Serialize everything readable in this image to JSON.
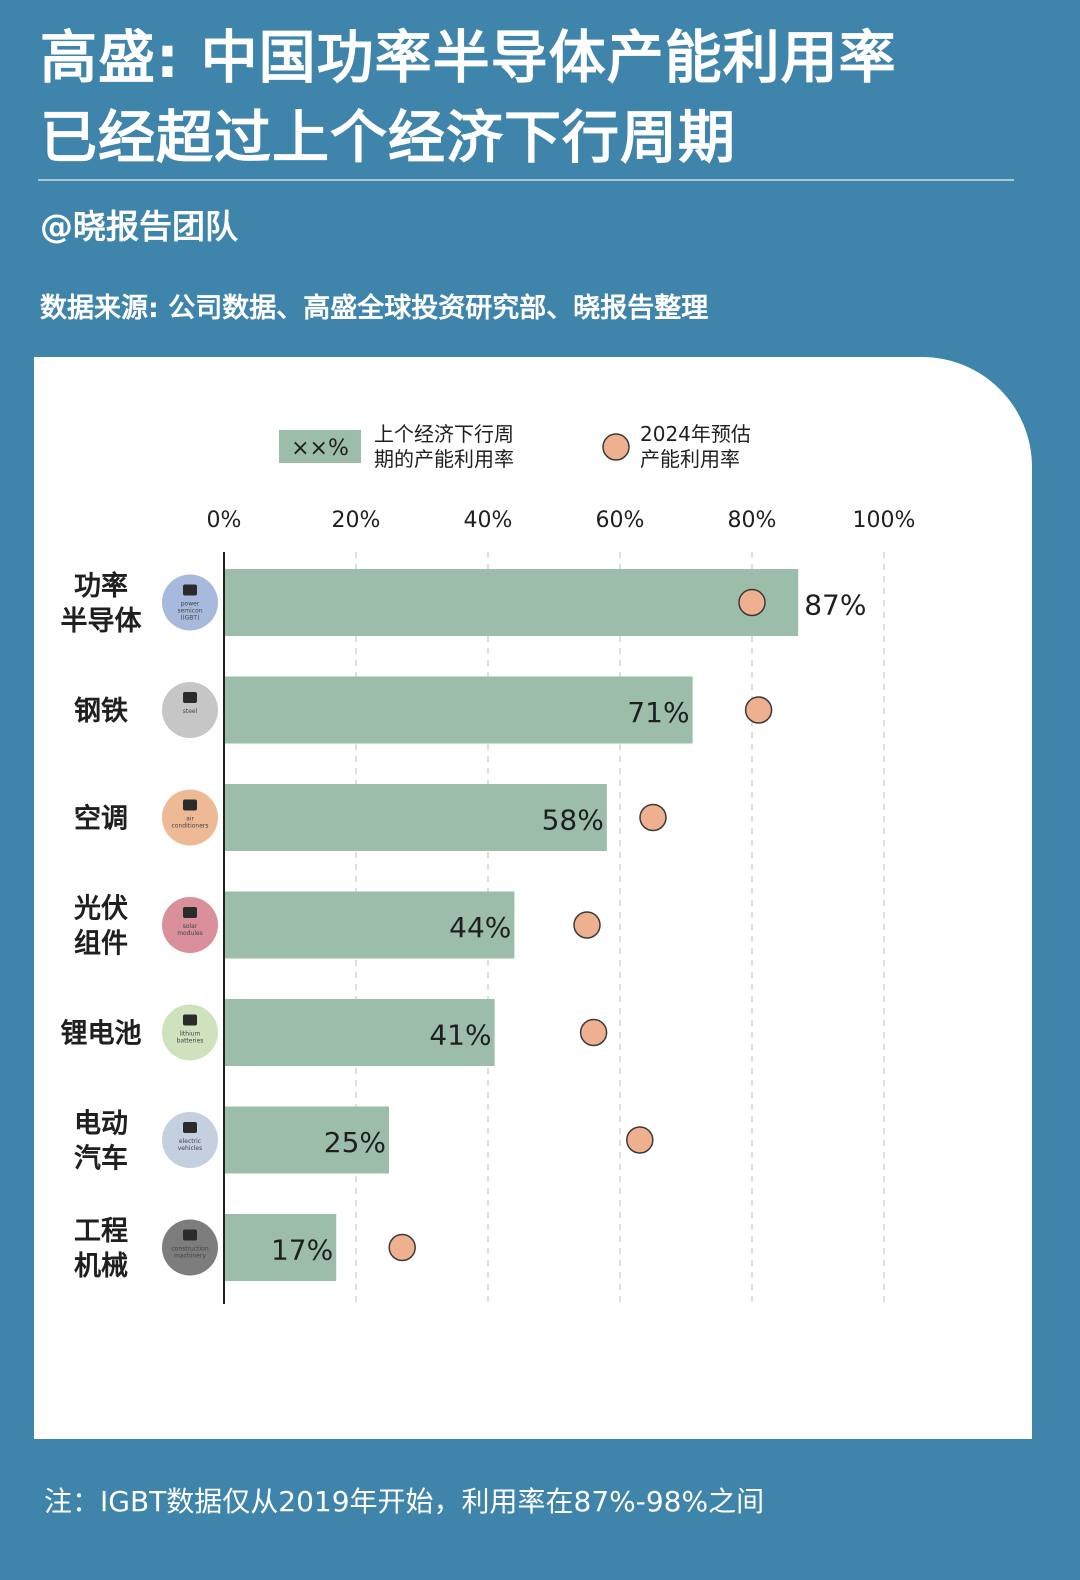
{
  "header": {
    "title_line1": "高盛: 中国功率半导体产能利用率",
    "title_line2": "已经超过上个经济下行周期",
    "author": "@晓报告团队",
    "source": "数据来源: 公司数据、高盛全球投资研究部、晓报告整理"
  },
  "footer": {
    "note": "注：IGBT数据仅从2019年开始，利用率在87%-98%之间"
  },
  "colors": {
    "background": "#3f84aa",
    "bar": "#9bbdaa",
    "dot": "#efb08f",
    "dot_outline": "#3a3a3a"
  },
  "chart_data": {
    "type": "bar",
    "orientation": "horizontal",
    "xlim": [
      0,
      100
    ],
    "x_ticks": [
      "0%",
      "20%",
      "40%",
      "60%",
      "80%",
      "100%"
    ],
    "grid": "vertical dashed",
    "legend": {
      "placement": "top",
      "bar_sample": "××%",
      "bar_line1": "上个经济下行周",
      "bar_line2": "期的产能利用率",
      "dot_line1": "2024年预估",
      "dot_line2": "产能利用率"
    },
    "categories": [
      {
        "label_lines": [
          "功率",
          "半导体"
        ],
        "icon": "power-semiconductor-icon",
        "icon_caption": [
          "power",
          "semicon",
          "(IGBT)"
        ],
        "icon_color": "#a7b9dc"
      },
      {
        "label_lines": [
          "钢铁"
        ],
        "icon": "steel-icon",
        "icon_caption": [
          "steel"
        ],
        "icon_color": "#c6c6c6"
      },
      {
        "label_lines": [
          "空调"
        ],
        "icon": "air-conditioner-icon",
        "icon_caption": [
          "air",
          "conditioners"
        ],
        "icon_color": "#eeb995"
      },
      {
        "label_lines": [
          "光伏",
          "组件"
        ],
        "icon": "solar-panel-icon",
        "icon_caption": [
          "solar",
          "modules"
        ],
        "icon_color": "#d9909a"
      },
      {
        "label_lines": [
          "锂电池"
        ],
        "icon": "battery-icon",
        "icon_caption": [
          "lithium",
          "batteries"
        ],
        "icon_color": "#cde2bd"
      },
      {
        "label_lines": [
          "电动",
          "汽车"
        ],
        "icon": "electric-car-icon",
        "icon_caption": [
          "electric",
          "vehicles"
        ],
        "icon_color": "#c4cfe0"
      },
      {
        "label_lines": [
          "工程",
          "机械"
        ],
        "icon": "excavator-icon",
        "icon_caption": [
          "construction",
          "machinery"
        ],
        "icon_color": "#7d7d7d"
      }
    ],
    "series": [
      {
        "name": "上个经济下行周期的产能利用率",
        "values": [
          87,
          71,
          58,
          44,
          41,
          25,
          17
        ]
      },
      {
        "name": "2024年预估产能利用率",
        "values": [
          80,
          81,
          65,
          55,
          56,
          63,
          27
        ]
      }
    ],
    "data_labels": [
      "87%",
      "71%",
      "58%",
      "44%",
      "41%",
      "25%",
      "17%"
    ]
  }
}
